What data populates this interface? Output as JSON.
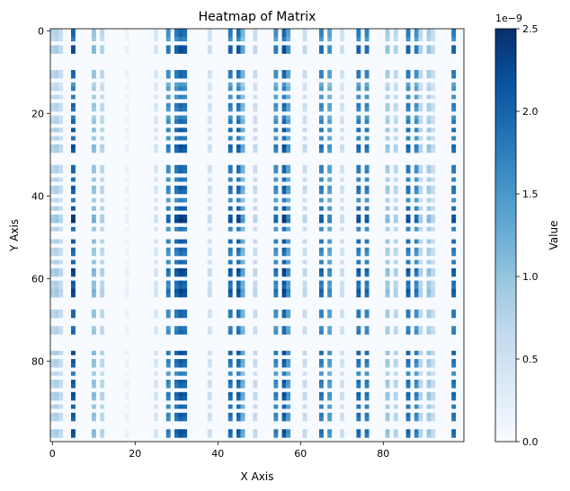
{
  "chart_data": {
    "type": "heatmap",
    "title": "Heatmap of Matrix",
    "xlabel": "X Axis",
    "ylabel": "Y Axis",
    "x_range": [
      0,
      99
    ],
    "y_range": [
      0,
      99
    ],
    "x_ticks": [
      0,
      20,
      40,
      60,
      80
    ],
    "y_ticks": [
      0,
      20,
      40,
      60,
      80
    ],
    "colorbar": {
      "label": "Value",
      "range": [
        0,
        2.5e-09
      ],
      "ticks": [
        "0.0",
        "0.5",
        "1.0",
        "1.5",
        "2.0",
        "2.5"
      ],
      "tick_values": [
        0,
        0.5,
        1.0,
        1.5,
        2.0,
        2.5
      ],
      "offset_text": "1e−9",
      "colormap": "Blues"
    },
    "column_weights": [
      {
        "col": 0,
        "w": 0.35
      },
      {
        "col": 1,
        "w": 0.4
      },
      {
        "col": 2,
        "w": 0.3
      },
      {
        "col": 5,
        "w": 1.0
      },
      {
        "col": 10,
        "w": 0.5
      },
      {
        "col": 12,
        "w": 0.35
      },
      {
        "col": 18,
        "w": 0.08
      },
      {
        "col": 25,
        "w": 0.2
      },
      {
        "col": 28,
        "w": 0.8
      },
      {
        "col": 30,
        "w": 0.9
      },
      {
        "col": 31,
        "w": 1.0
      },
      {
        "col": 32,
        "w": 0.95
      },
      {
        "col": 38,
        "w": 0.25
      },
      {
        "col": 43,
        "w": 0.9
      },
      {
        "col": 45,
        "w": 0.95
      },
      {
        "col": 46,
        "w": 0.6
      },
      {
        "col": 49,
        "w": 0.3
      },
      {
        "col": 54,
        "w": 0.8
      },
      {
        "col": 56,
        "w": 1.0
      },
      {
        "col": 57,
        "w": 0.7
      },
      {
        "col": 61,
        "w": 0.3
      },
      {
        "col": 65,
        "w": 0.85
      },
      {
        "col": 67,
        "w": 0.7
      },
      {
        "col": 70,
        "w": 0.25
      },
      {
        "col": 74,
        "w": 0.9
      },
      {
        "col": 76,
        "w": 0.85
      },
      {
        "col": 81,
        "w": 0.45
      },
      {
        "col": 83,
        "w": 0.35
      },
      {
        "col": 86,
        "w": 0.9
      },
      {
        "col": 88,
        "w": 0.8
      },
      {
        "col": 89,
        "w": 0.35
      },
      {
        "col": 91,
        "w": 0.45
      },
      {
        "col": 92,
        "w": 0.3
      },
      {
        "col": 97,
        "w": 0.9
      }
    ],
    "row_weights": [
      {
        "row": 0,
        "w": 0.8
      },
      {
        "row": 1,
        "w": 0.8
      },
      {
        "row": 2,
        "w": 0.7
      },
      {
        "row": 4,
        "w": 0.9
      },
      {
        "row": 5,
        "w": 0.9
      },
      {
        "row": 10,
        "w": 0.8
      },
      {
        "row": 11,
        "w": 0.8
      },
      {
        "row": 13,
        "w": 0.6
      },
      {
        "row": 14,
        "w": 0.7
      },
      {
        "row": 16,
        "w": 0.7
      },
      {
        "row": 18,
        "w": 0.8
      },
      {
        "row": 19,
        "w": 0.75
      },
      {
        "row": 21,
        "w": 0.7
      },
      {
        "row": 22,
        "w": 0.8
      },
      {
        "row": 24,
        "w": 0.85
      },
      {
        "row": 26,
        "w": 0.75
      },
      {
        "row": 28,
        "w": 0.9
      },
      {
        "row": 29,
        "w": 0.85
      },
      {
        "row": 33,
        "w": 0.8
      },
      {
        "row": 34,
        "w": 0.8
      },
      {
        "row": 36,
        "w": 0.75
      },
      {
        "row": 38,
        "w": 0.85
      },
      {
        "row": 39,
        "w": 0.8
      },
      {
        "row": 41,
        "w": 0.7
      },
      {
        "row": 43,
        "w": 0.85
      },
      {
        "row": 45,
        "w": 0.95
      },
      {
        "row": 46,
        "w": 1.0
      },
      {
        "row": 48,
        "w": 0.75
      },
      {
        "row": 51,
        "w": 0.85
      },
      {
        "row": 53,
        "w": 0.8
      },
      {
        "row": 54,
        "w": 0.75
      },
      {
        "row": 56,
        "w": 0.8
      },
      {
        "row": 58,
        "w": 0.95
      },
      {
        "row": 59,
        "w": 0.9
      },
      {
        "row": 61,
        "w": 0.85
      },
      {
        "row": 62,
        "w": 0.8
      },
      {
        "row": 63,
        "w": 0.95
      },
      {
        "row": 64,
        "w": 0.9
      },
      {
        "row": 68,
        "w": 0.8
      },
      {
        "row": 69,
        "w": 0.8
      },
      {
        "row": 72,
        "w": 0.75
      },
      {
        "row": 73,
        "w": 0.8
      },
      {
        "row": 78,
        "w": 0.9
      },
      {
        "row": 80,
        "w": 0.85
      },
      {
        "row": 81,
        "w": 0.8
      },
      {
        "row": 83,
        "w": 0.7
      },
      {
        "row": 85,
        "w": 0.85
      },
      {
        "row": 86,
        "w": 0.8
      },
      {
        "row": 88,
        "w": 0.9
      },
      {
        "row": 89,
        "w": 0.85
      },
      {
        "row": 91,
        "w": 0.8
      },
      {
        "row": 93,
        "w": 0.85
      },
      {
        "row": 94,
        "w": 0.8
      },
      {
        "row": 97,
        "w": 0.9
      },
      {
        "row": 98,
        "w": 0.85
      }
    ],
    "value_model": "value[row][col] = column_weight * row_weight * 2.5e-9"
  }
}
